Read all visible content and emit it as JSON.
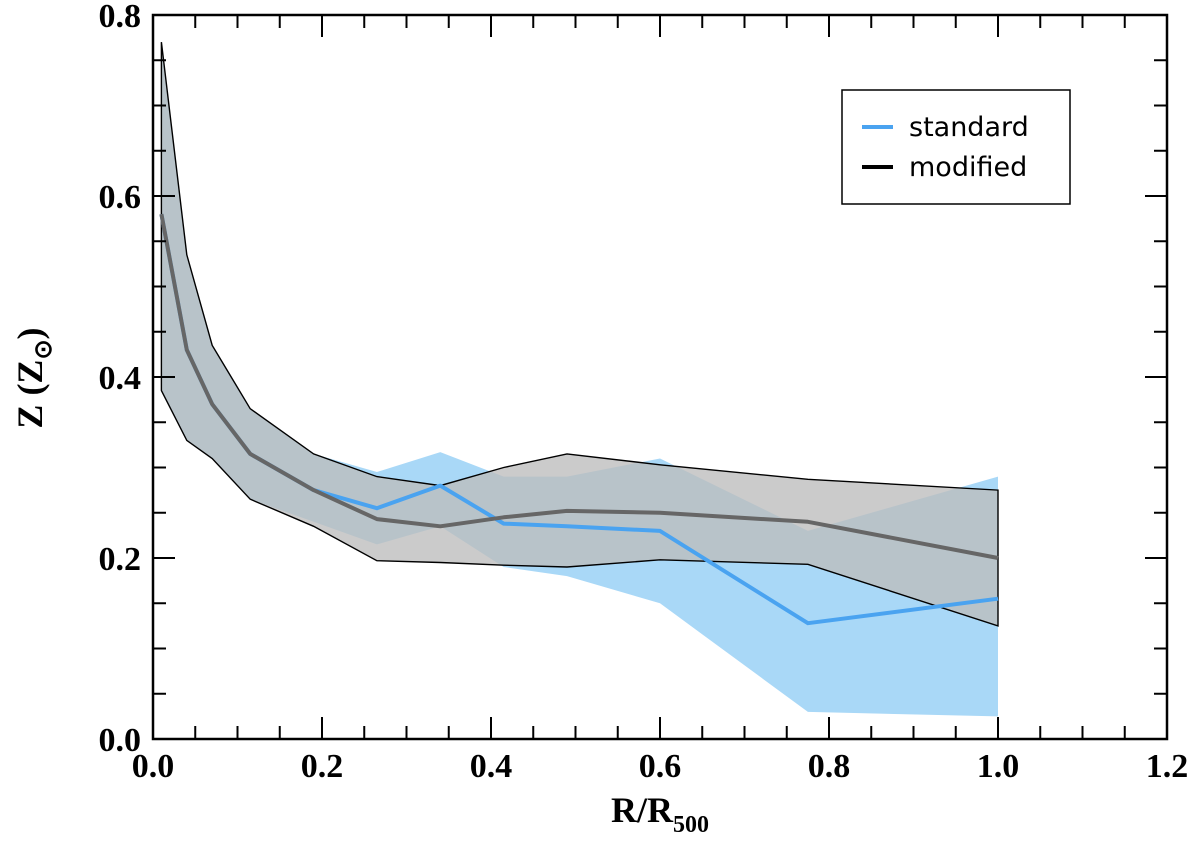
{
  "chart_data": {
    "type": "line",
    "title": "",
    "xlabel": {
      "main": "R/R",
      "sub": "500"
    },
    "ylabel": {
      "main": "Z (Z",
      "sub": "⊙",
      "close": ")"
    },
    "xlim": [
      0.0,
      1.2
    ],
    "ylim": [
      0.0,
      0.8
    ],
    "xticks": [
      0.0,
      0.2,
      0.4,
      0.6,
      0.8,
      1.0,
      1.2
    ],
    "xtick_labels": [
      "0.0",
      "0.2",
      "0.4",
      "0.6",
      "0.8",
      "1.0",
      "1.2"
    ],
    "yticks": [
      0.0,
      0.2,
      0.4,
      0.6,
      0.8
    ],
    "ytick_labels": [
      "0.0",
      "0.2",
      "0.4",
      "0.6",
      "0.8"
    ],
    "x_minor_step": 0.05,
    "y_minor_step": 0.05,
    "grid": false,
    "legend": {
      "position": "top-right",
      "entries": [
        {
          "label": "standard",
          "color": "#4aa3f0"
        },
        {
          "label": "modified",
          "color": "#000000"
        }
      ]
    },
    "series": [
      {
        "name": "standard",
        "line_color": "#4aa3f0",
        "band_color": "#a9d8f7",
        "x": [
          0.01,
          0.04,
          0.07,
          0.115,
          0.19,
          0.265,
          0.34,
          0.415,
          0.49,
          0.6,
          0.775,
          1.0
        ],
        "y": [
          0.58,
          0.43,
          0.37,
          0.315,
          0.275,
          0.255,
          0.28,
          0.238,
          0.235,
          0.23,
          0.128,
          0.155
        ],
        "lower": [
          0.385,
          0.33,
          0.31,
          0.265,
          0.24,
          0.215,
          0.235,
          0.19,
          0.18,
          0.15,
          0.03,
          0.025
        ],
        "upper": [
          0.77,
          0.535,
          0.435,
          0.365,
          0.315,
          0.295,
          0.317,
          0.29,
          0.29,
          0.31,
          0.23,
          0.29
        ]
      },
      {
        "name": "modified",
        "line_color": "#666666",
        "band_color": "#bcbcbc",
        "edge_color": "#000000",
        "x": [
          0.01,
          0.04,
          0.07,
          0.115,
          0.19,
          0.265,
          0.34,
          0.415,
          0.49,
          0.6,
          0.775,
          1.0
        ],
        "y": [
          0.58,
          0.43,
          0.37,
          0.315,
          0.275,
          0.243,
          0.235,
          0.245,
          0.252,
          0.25,
          0.24,
          0.2
        ],
        "lower": [
          0.385,
          0.33,
          0.31,
          0.265,
          0.235,
          0.197,
          0.195,
          0.192,
          0.19,
          0.198,
          0.193,
          0.125
        ],
        "upper": [
          0.77,
          0.535,
          0.435,
          0.365,
          0.315,
          0.29,
          0.28,
          0.3,
          0.315,
          0.303,
          0.287,
          0.275
        ]
      }
    ]
  }
}
